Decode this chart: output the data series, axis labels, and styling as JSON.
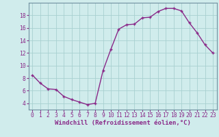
{
  "x": [
    0,
    1,
    2,
    3,
    4,
    5,
    6,
    7,
    8,
    9,
    10,
    11,
    12,
    13,
    14,
    15,
    16,
    17,
    18,
    19,
    20,
    21,
    22,
    23
  ],
  "y": [
    8.5,
    7.2,
    6.3,
    6.2,
    5.1,
    4.6,
    4.2,
    3.8,
    4.0,
    9.2,
    12.6,
    15.8,
    16.5,
    16.6,
    17.6,
    17.7,
    18.6,
    19.1,
    19.1,
    18.7,
    16.8,
    15.2,
    13.3,
    12.0
  ],
  "line_color": "#892888",
  "marker": "+",
  "bg_color": "#d0ecec",
  "grid_color": "#a8d0d0",
  "xlabel": "Windchill (Refroidissement éolien,°C)",
  "xlabel_color": "#892888",
  "tick_color": "#892888",
  "ylim_min": 3.0,
  "ylim_max": 20.0,
  "xlim_min": -0.5,
  "xlim_max": 23.5,
  "yticks": [
    4,
    6,
    8,
    10,
    12,
    14,
    16,
    18
  ],
  "xticks": [
    0,
    1,
    2,
    3,
    4,
    5,
    6,
    7,
    8,
    9,
    10,
    11,
    12,
    13,
    14,
    15,
    16,
    17,
    18,
    19,
    20,
    21,
    22,
    23
  ],
  "font_size_label": 6.5,
  "font_size_tick": 5.8,
  "line_width": 1.0,
  "marker_size": 3.5,
  "marker_ew": 1.0
}
